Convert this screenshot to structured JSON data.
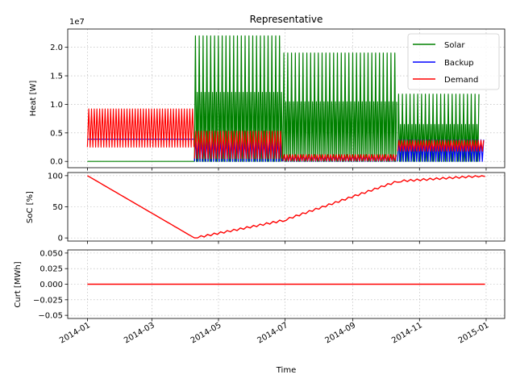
{
  "chart_data": [
    {
      "type": "line",
      "title": "Representative",
      "ylabel": "Heat [W]",
      "y_multiplier_label": "1e7",
      "ylim": [
        -1100000,
        23200000
      ],
      "y_ticks": [
        0,
        5000000,
        10000000,
        15000000,
        20000000
      ],
      "y_tick_labels": [
        "0.0",
        "0.5",
        "1.0",
        "1.5",
        "2.0"
      ],
      "grid": true,
      "legend_position": "upper right",
      "series": [
        {
          "name": "Solar",
          "color": "#008000",
          "segments": [
            {
              "start": "2014-01-01",
              "end": "2014-04-09",
              "base": 0,
              "peak": 0
            },
            {
              "start": "2014-04-09",
              "end": "2014-06-29",
              "base": 0,
              "peak": 22000000
            },
            {
              "start": "2014-06-29",
              "end": "2014-10-12",
              "base": 0,
              "peak": 19000000
            },
            {
              "start": "2014-10-12",
              "end": "2014-12-26",
              "base": 0,
              "peak": 11800000
            }
          ]
        },
        {
          "name": "Backup",
          "color": "#0000ff",
          "segments": [
            {
              "start": "2014-01-01",
              "end": "2014-04-09",
              "base": 3900000,
              "peak": 3900000
            },
            {
              "start": "2014-04-09",
              "end": "2014-06-29",
              "base": 0,
              "peak": 3600000
            },
            {
              "start": "2014-06-29",
              "end": "2014-10-12",
              "base": 0,
              "peak": 1000000
            },
            {
              "start": "2014-10-12",
              "end": "2014-12-31",
              "base": 0,
              "peak": 3800000
            }
          ]
        },
        {
          "name": "Demand",
          "color": "#ff0000",
          "segments": [
            {
              "start": "2014-01-01",
              "end": "2014-04-09",
              "base": 2500000,
              "peak": 9200000
            },
            {
              "start": "2014-04-09",
              "end": "2014-06-29",
              "base": 500000,
              "peak": 5300000
            },
            {
              "start": "2014-06-29",
              "end": "2014-10-12",
              "base": 100000,
              "peak": 1200000
            },
            {
              "start": "2014-10-12",
              "end": "2014-12-31",
              "base": 1800000,
              "peak": 3700000
            }
          ]
        }
      ]
    },
    {
      "type": "line",
      "ylabel": "SoC [%]",
      "ylim": [
        -5,
        105
      ],
      "y_ticks": [
        0,
        50,
        100
      ],
      "y_tick_labels": [
        "0",
        "50",
        "100"
      ],
      "grid": true,
      "series": [
        {
          "color": "#ff0000",
          "x": [
            "2014-01-01",
            "2014-04-09",
            "2014-06-29",
            "2014-10-12",
            "2014-12-31"
          ],
          "values": [
            100,
            0,
            28,
            91,
            100
          ]
        }
      ]
    },
    {
      "type": "line",
      "ylabel": "Curt [MWh]",
      "xlabel": "Time",
      "ylim": [
        -0.055,
        0.055
      ],
      "y_ticks": [
        -0.05,
        -0.025,
        0,
        0.025,
        0.05
      ],
      "y_tick_labels": [
        "−0.05",
        "−0.025",
        "0.000",
        "0.025",
        "0.050"
      ],
      "x_ticks": [
        "2014-01-01",
        "2014-03-01",
        "2014-05-01",
        "2014-07-01",
        "2014-09-01",
        "2014-11-01",
        "2015-01-01"
      ],
      "x_tick_labels": [
        "2014-01",
        "2014-03",
        "2014-05",
        "2014-07",
        "2014-09",
        "2014-11",
        "2015-01"
      ],
      "grid": true,
      "series": [
        {
          "color": "#ff0000",
          "x": [
            "2014-01-01",
            "2014-12-31"
          ],
          "values": [
            0,
            0
          ]
        }
      ]
    }
  ],
  "x_range": [
    "2013-12-14",
    "2015-01-18"
  ]
}
